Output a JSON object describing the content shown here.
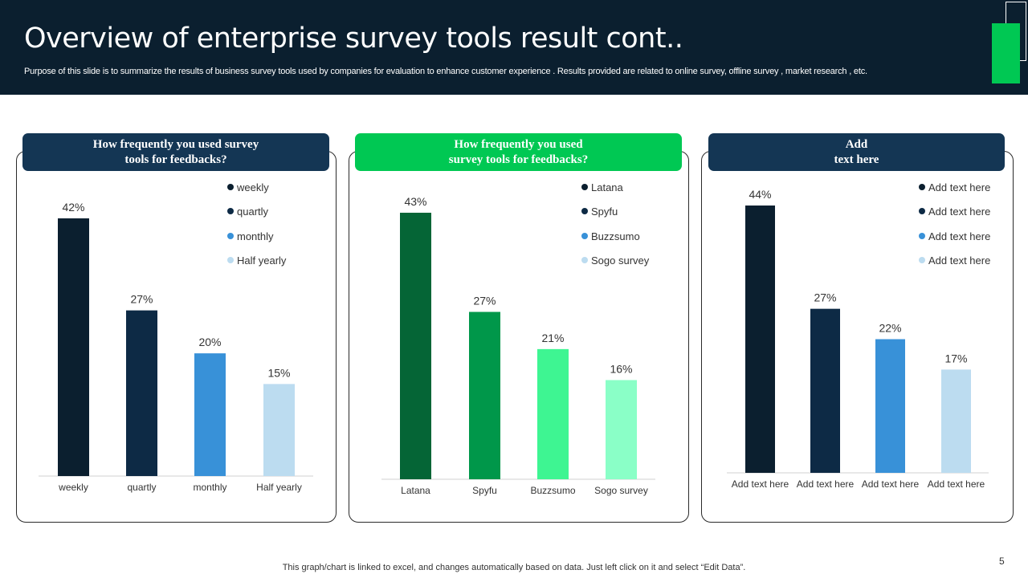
{
  "header": {
    "title": "Overview of enterprise survey tools result cont..",
    "subtitle": "Purpose of this slide is to summarize the results of  business  survey tools used by companies for evaluation to enhance customer experience . Results provided are related to online  survey,  offline survey , market research , etc."
  },
  "footer": {
    "note": "This graph/chart is linked to excel,  and changes automatically based on data. Just left click on it and select “Edit Data”.",
    "page_number": "5"
  },
  "colors": {
    "header_bg": "#0b1f2f",
    "accent_green": "#00c853",
    "panel_title_navy": "#143654"
  },
  "chart_data": [
    {
      "type": "bar",
      "title": "How frequently you used survey\ntools for feedbacks?",
      "title_color": "#143654",
      "categories": [
        "weekly",
        "quartly",
        "monthly",
        "Half yearly"
      ],
      "values": [
        42,
        27,
        20,
        15
      ],
      "value_labels": [
        "42%",
        "27%",
        "20%",
        "15%"
      ],
      "colors": [
        "#0b1f2f",
        "#0d2a45",
        "#3891d8",
        "#bcdcf0"
      ],
      "legend": [
        "weekly",
        "quartly",
        "monthly",
        "Half yearly"
      ],
      "legend_position": "top-right",
      "ylim": [
        0,
        42
      ]
    },
    {
      "type": "bar",
      "title": "How frequently you used\nsurvey tools for feedbacks?",
      "title_color": "#00c853",
      "categories": [
        "Latana",
        "Spyfu",
        "Buzzsumo",
        "Sogo survey"
      ],
      "values": [
        43,
        27,
        21,
        16
      ],
      "value_labels": [
        "43%",
        "27%",
        "21%",
        "16%"
      ],
      "colors": [
        "#056536",
        "#00974a",
        "#3ef592",
        "#8affc7"
      ],
      "legend": [
        "Latana",
        "Spyfu",
        "Buzzsumo",
        "Sogo survey"
      ],
      "legend_colors": [
        "#0b1f2f",
        "#0d2a45",
        "#3891d8",
        "#bcdcf0"
      ],
      "legend_position": "top-right",
      "ylim": [
        0,
        43
      ]
    },
    {
      "type": "bar",
      "title": "Add\ntext here",
      "title_color": "#143654",
      "categories": [
        "Add text here",
        "Add text here",
        "Add text here",
        "Add text here"
      ],
      "values": [
        44,
        27,
        22,
        17
      ],
      "value_labels": [
        "44%",
        "27%",
        "22%",
        "17%"
      ],
      "colors": [
        "#0b1f2f",
        "#0d2a45",
        "#3891d8",
        "#bcdcf0"
      ],
      "legend": [
        "Add text here",
        "Add text here",
        "Add text here",
        "Add text here"
      ],
      "legend_position": "top-right",
      "ylim": [
        0,
        44
      ]
    }
  ]
}
